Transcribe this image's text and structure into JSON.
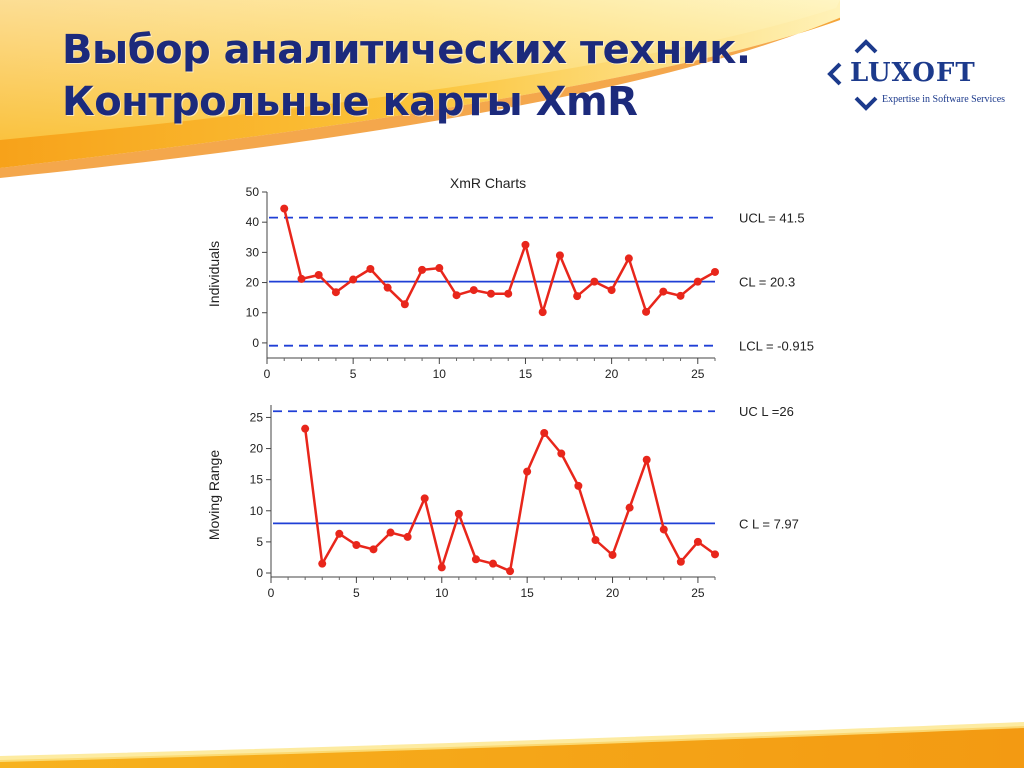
{
  "slide": {
    "title_line1": "Выбор аналитических техник.",
    "title_line2": "Контрольные карты XmR"
  },
  "logo": {
    "word": "LUXOFT",
    "tagline": "Expertise in Software Services"
  },
  "colors": {
    "title": "#1c2a7c",
    "data_line": "#e8261b",
    "control_line": "#1f3fd6",
    "banner": "#f6a21e",
    "logo": "#1c3a8c"
  },
  "chart_data": [
    {
      "type": "line",
      "title": "XmR Charts",
      "ylabel": "Individuals",
      "xlim": [
        0,
        26
      ],
      "ylim": [
        -5,
        50
      ],
      "xticks": [
        0,
        5,
        10,
        15,
        20,
        25
      ],
      "yticks": [
        0,
        10,
        20,
        30,
        40,
        50
      ],
      "x": [
        1,
        2,
        3,
        4,
        5,
        6,
        7,
        8,
        9,
        10,
        11,
        12,
        13,
        14,
        15,
        16,
        17,
        18,
        19,
        20,
        21,
        22,
        23,
        24,
        25,
        26
      ],
      "values": [
        44.5,
        21.2,
        22.5,
        16.8,
        21.0,
        24.5,
        18.3,
        12.8,
        24.2,
        24.8,
        15.8,
        17.5,
        16.3,
        16.3,
        32.5,
        10.2,
        29.0,
        15.5,
        20.3,
        17.5,
        28.0,
        10.3,
        17.0,
        15.6,
        20.3,
        23.5
      ],
      "reference_lines": [
        {
          "label": "UCL = 41.5",
          "value": 41.5,
          "style": "dashed"
        },
        {
          "label": "CL = 20.3",
          "value": 20.3,
          "style": "solid"
        },
        {
          "label": "LCL = -0.915",
          "value": -0.915,
          "style": "dashed"
        }
      ]
    },
    {
      "type": "line",
      "title": "",
      "ylabel": "Moving Range",
      "xlim": [
        0,
        26
      ],
      "ylim": [
        0,
        27
      ],
      "xticks": [
        0,
        5,
        10,
        15,
        20,
        25
      ],
      "yticks": [
        0,
        5,
        10,
        15,
        20,
        25
      ],
      "x": [
        2,
        3,
        4,
        5,
        6,
        7,
        8,
        9,
        10,
        11,
        12,
        13,
        14,
        15,
        16,
        17,
        18,
        19,
        20,
        21,
        22,
        23,
        24,
        25,
        26
      ],
      "values": [
        23.2,
        1.5,
        6.3,
        4.5,
        3.8,
        6.5,
        5.8,
        12.0,
        0.9,
        9.5,
        2.2,
        1.5,
        0.3,
        16.3,
        22.5,
        19.2,
        14.0,
        5.3,
        2.9,
        10.5,
        18.2,
        7.0,
        1.8,
        5.0,
        3.0
      ],
      "reference_lines": [
        {
          "label": "UC L =26",
          "value": 26,
          "style": "dashed"
        },
        {
          "label": "C L = 7.97",
          "value": 7.97,
          "style": "solid"
        }
      ]
    }
  ]
}
